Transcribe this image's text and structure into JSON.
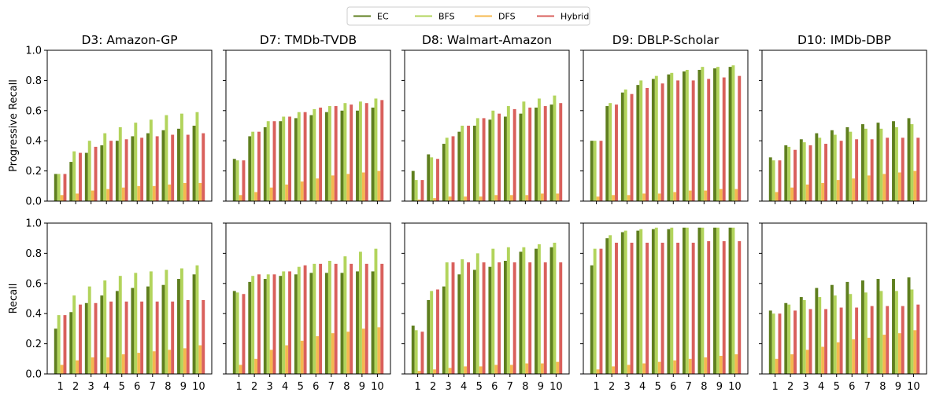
{
  "legend": {
    "placement": "top-center",
    "entries": [
      {
        "name": "EC",
        "color": "#5f7f1f"
      },
      {
        "name": "BFS",
        "color": "#b2d45c"
      },
      {
        "name": "DFS",
        "color": "#f5b84f"
      },
      {
        "name": "Hybrid",
        "color": "#d9605c"
      }
    ]
  },
  "chart_data": {
    "type": "bar",
    "layout": "2 rows x 5 columns of grouped bar charts",
    "categories": [
      "1",
      "2",
      "3",
      "4",
      "5",
      "6",
      "7",
      "8",
      "9",
      "10"
    ],
    "ylim": [
      0,
      1.0
    ],
    "yticks": [
      "0.0",
      "0.2",
      "0.4",
      "0.6",
      "0.8",
      "1.0"
    ],
    "series_names": [
      "EC",
      "BFS",
      "DFS",
      "Hybrid"
    ],
    "row_ylabels": [
      "Progressive Recall",
      "Recall"
    ],
    "column_titles": [
      "D3: Amazon-GP",
      "D7: TMDb-TVDB",
      "D8: Walmart-Amazon",
      "D9: DBLP-Scholar",
      "D10: IMDb-DBP"
    ],
    "panels": [
      {
        "row": 0,
        "col": 0,
        "title": "D3: Amazon-GP",
        "series": [
          {
            "name": "EC",
            "values": [
              0.18,
              0.26,
              0.32,
              0.37,
              0.4,
              0.43,
              0.45,
              0.47,
              0.48,
              0.5
            ]
          },
          {
            "name": "BFS",
            "values": [
              0.18,
              0.33,
              0.4,
              0.45,
              0.49,
              0.52,
              0.54,
              0.57,
              0.58,
              0.59
            ]
          },
          {
            "name": "DFS",
            "values": [
              0.04,
              0.05,
              0.07,
              0.08,
              0.09,
              0.1,
              0.1,
              0.11,
              0.12,
              0.12
            ]
          },
          {
            "name": "Hybrid",
            "values": [
              0.18,
              0.32,
              0.36,
              0.4,
              0.41,
              0.42,
              0.43,
              0.44,
              0.44,
              0.45
            ]
          }
        ]
      },
      {
        "row": 0,
        "col": 1,
        "title": "D7: TMDb-TVDB",
        "series": [
          {
            "name": "EC",
            "values": [
              0.28,
              0.43,
              0.49,
              0.53,
              0.55,
              0.57,
              0.59,
              0.6,
              0.6,
              0.62
            ]
          },
          {
            "name": "BFS",
            "values": [
              0.27,
              0.46,
              0.53,
              0.56,
              0.59,
              0.61,
              0.63,
              0.65,
              0.66,
              0.68
            ]
          },
          {
            "name": "DFS",
            "values": [
              0.04,
              0.06,
              0.09,
              0.11,
              0.13,
              0.15,
              0.17,
              0.18,
              0.19,
              0.2
            ]
          },
          {
            "name": "Hybrid",
            "values": [
              0.27,
              0.46,
              0.53,
              0.56,
              0.59,
              0.62,
              0.63,
              0.64,
              0.65,
              0.67
            ]
          }
        ]
      },
      {
        "row": 0,
        "col": 2,
        "title": "D8: Walmart-Amazon",
        "series": [
          {
            "name": "EC",
            "values": [
              0.2,
              0.31,
              0.38,
              0.46,
              0.5,
              0.54,
              0.56,
              0.58,
              0.62,
              0.64
            ]
          },
          {
            "name": "BFS",
            "values": [
              0.14,
              0.29,
              0.42,
              0.5,
              0.55,
              0.6,
              0.63,
              0.66,
              0.68,
              0.7
            ]
          },
          {
            "name": "DFS",
            "values": [
              0.01,
              0.02,
              0.03,
              0.03,
              0.03,
              0.04,
              0.04,
              0.04,
              0.05,
              0.05
            ]
          },
          {
            "name": "Hybrid",
            "values": [
              0.14,
              0.28,
              0.43,
              0.5,
              0.55,
              0.58,
              0.61,
              0.62,
              0.63,
              0.65
            ]
          }
        ]
      },
      {
        "row": 0,
        "col": 3,
        "title": "D9: DBLP-Scholar",
        "series": [
          {
            "name": "EC",
            "values": [
              0.4,
              0.63,
              0.72,
              0.77,
              0.81,
              0.84,
              0.86,
              0.87,
              0.88,
              0.89
            ]
          },
          {
            "name": "BFS",
            "values": [
              0.4,
              0.65,
              0.74,
              0.8,
              0.83,
              0.85,
              0.87,
              0.89,
              0.89,
              0.9
            ]
          },
          {
            "name": "DFS",
            "values": [
              0.03,
              0.04,
              0.04,
              0.05,
              0.05,
              0.06,
              0.07,
              0.07,
              0.08,
              0.08
            ]
          },
          {
            "name": "Hybrid",
            "values": [
              0.4,
              0.64,
              0.71,
              0.75,
              0.78,
              0.8,
              0.8,
              0.81,
              0.82,
              0.83
            ]
          }
        ]
      },
      {
        "row": 0,
        "col": 4,
        "title": "D10: IMDb-DBP",
        "series": [
          {
            "name": "EC",
            "values": [
              0.29,
              0.37,
              0.41,
              0.45,
              0.47,
              0.49,
              0.51,
              0.52,
              0.53,
              0.55
            ]
          },
          {
            "name": "BFS",
            "values": [
              0.27,
              0.36,
              0.39,
              0.42,
              0.44,
              0.46,
              0.48,
              0.48,
              0.49,
              0.51
            ]
          },
          {
            "name": "DFS",
            "values": [
              0.06,
              0.09,
              0.11,
              0.12,
              0.14,
              0.15,
              0.17,
              0.18,
              0.19,
              0.2
            ]
          },
          {
            "name": "Hybrid",
            "values": [
              0.27,
              0.34,
              0.37,
              0.38,
              0.4,
              0.41,
              0.41,
              0.42,
              0.42,
              0.42
            ]
          }
        ]
      },
      {
        "row": 1,
        "col": 0,
        "title": "D3: Amazon-GP",
        "series": [
          {
            "name": "EC",
            "values": [
              0.3,
              0.41,
              0.47,
              0.52,
              0.55,
              0.57,
              0.58,
              0.59,
              0.63,
              0.66
            ]
          },
          {
            "name": "BFS",
            "values": [
              0.39,
              0.52,
              0.58,
              0.62,
              0.65,
              0.67,
              0.68,
              0.69,
              0.7,
              0.72
            ]
          },
          {
            "name": "DFS",
            "values": [
              0.06,
              0.09,
              0.11,
              0.11,
              0.13,
              0.14,
              0.15,
              0.16,
              0.17,
              0.19
            ]
          },
          {
            "name": "Hybrid",
            "values": [
              0.39,
              0.46,
              0.47,
              0.48,
              0.48,
              0.48,
              0.48,
              0.48,
              0.49,
              0.49
            ]
          }
        ]
      },
      {
        "row": 1,
        "col": 1,
        "title": "D7: TMDb-TVDB",
        "series": [
          {
            "name": "EC",
            "values": [
              0.55,
              0.61,
              0.63,
              0.65,
              0.66,
              0.67,
              0.67,
              0.67,
              0.68,
              0.68
            ]
          },
          {
            "name": "BFS",
            "values": [
              0.54,
              0.65,
              0.66,
              0.68,
              0.71,
              0.73,
              0.75,
              0.78,
              0.81,
              0.83
            ]
          },
          {
            "name": "DFS",
            "values": [
              0.06,
              0.1,
              0.16,
              0.19,
              0.22,
              0.25,
              0.27,
              0.28,
              0.3,
              0.31
            ]
          },
          {
            "name": "Hybrid",
            "values": [
              0.53,
              0.66,
              0.66,
              0.68,
              0.72,
              0.73,
              0.73,
              0.73,
              0.73,
              0.73
            ]
          }
        ]
      },
      {
        "row": 1,
        "col": 2,
        "title": "D8: Walmart-Amazon",
        "series": [
          {
            "name": "EC",
            "values": [
              0.32,
              0.49,
              0.58,
              0.66,
              0.69,
              0.71,
              0.75,
              0.81,
              0.83,
              0.84
            ]
          },
          {
            "name": "BFS",
            "values": [
              0.29,
              0.55,
              0.74,
              0.76,
              0.8,
              0.83,
              0.84,
              0.84,
              0.86,
              0.87
            ]
          },
          {
            "name": "DFS",
            "values": [
              0.02,
              0.03,
              0.04,
              0.05,
              0.05,
              0.06,
              0.06,
              0.07,
              0.07,
              0.08
            ]
          },
          {
            "name": "Hybrid",
            "values": [
              0.28,
              0.56,
              0.74,
              0.74,
              0.74,
              0.74,
              0.74,
              0.74,
              0.74,
              0.74
            ]
          }
        ]
      },
      {
        "row": 1,
        "col": 3,
        "title": "D9: DBLP-Scholar",
        "series": [
          {
            "name": "EC",
            "values": [
              0.72,
              0.9,
              0.94,
              0.95,
              0.96,
              0.96,
              0.97,
              0.97,
              0.97,
              0.97
            ]
          },
          {
            "name": "BFS",
            "values": [
              0.83,
              0.92,
              0.95,
              0.96,
              0.97,
              0.97,
              0.97,
              0.97,
              0.97,
              0.97
            ]
          },
          {
            "name": "DFS",
            "values": [
              0.03,
              0.05,
              0.06,
              0.07,
              0.08,
              0.09,
              0.1,
              0.11,
              0.12,
              0.13
            ]
          },
          {
            "name": "Hybrid",
            "values": [
              0.83,
              0.87,
              0.87,
              0.87,
              0.87,
              0.87,
              0.87,
              0.88,
              0.88,
              0.88
            ]
          }
        ]
      },
      {
        "row": 1,
        "col": 4,
        "title": "D10: IMDb-DBP",
        "series": [
          {
            "name": "EC",
            "values": [
              0.42,
              0.47,
              0.51,
              0.57,
              0.59,
              0.61,
              0.62,
              0.63,
              0.63,
              0.64
            ]
          },
          {
            "name": "BFS",
            "values": [
              0.4,
              0.46,
              0.49,
              0.51,
              0.52,
              0.53,
              0.54,
              0.55,
              0.55,
              0.56
            ]
          },
          {
            "name": "DFS",
            "values": [
              0.1,
              0.13,
              0.16,
              0.18,
              0.21,
              0.23,
              0.24,
              0.26,
              0.27,
              0.29
            ]
          },
          {
            "name": "Hybrid",
            "values": [
              0.4,
              0.42,
              0.43,
              0.43,
              0.44,
              0.44,
              0.45,
              0.45,
              0.45,
              0.46
            ]
          }
        ]
      }
    ]
  }
}
